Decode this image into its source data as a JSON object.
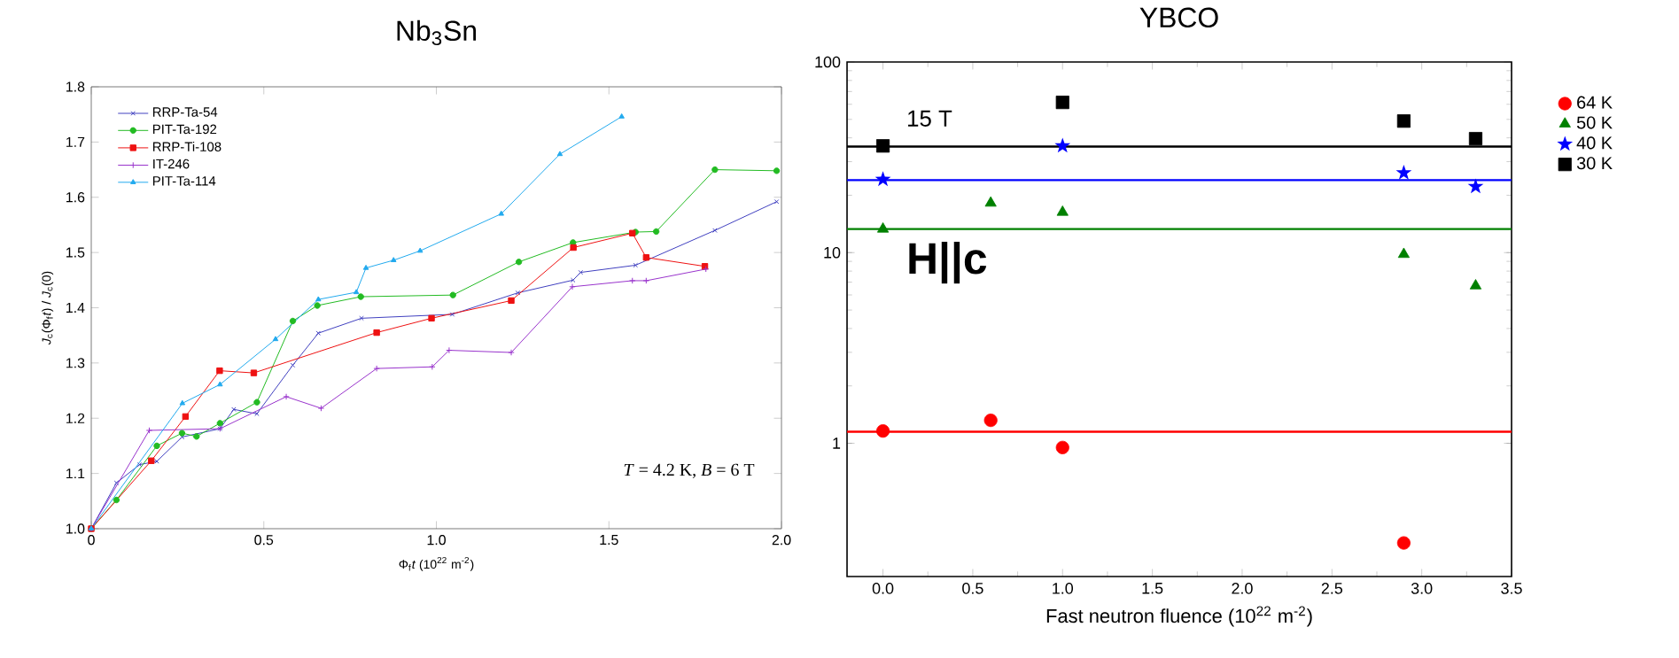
{
  "chart_data": [
    {
      "type": "line",
      "title": "Nb$_{3}$Sn",
      "xlabel": "Φ$_{f}$*t* (10$^{22}$ m$^{-2}$)",
      "ylabel": "*J*$_{c}$(Φ$_{f}$*t*) / *J*$_{c}$(0)",
      "xlim": [
        0,
        2
      ],
      "ylim": [
        1,
        1.8
      ],
      "xticks": [
        0,
        {
          "value": 0.5,
          "label": "0.5"
        },
        {
          "value": 1,
          "label": "1.0"
        },
        {
          "value": 1.5,
          "label": "1.5"
        },
        {
          "value": 2,
          "label": "2.0"
        }
      ],
      "yticks": [
        {
          "value": 1,
          "label": "1.0"
        },
        {
          "value": 1.1,
          "label": "1.1"
        },
        {
          "value": 1.2,
          "label": "1.2"
        },
        {
          "value": 1.3,
          "label": "1.3"
        },
        {
          "value": 1.4,
          "label": "1.4"
        },
        {
          "value": 1.5,
          "label": "1.5"
        },
        {
          "value": 1.6,
          "label": "1.6"
        },
        {
          "value": 1.7,
          "label": "1.7"
        },
        {
          "value": 1.8,
          "label": "1.8"
        }
      ],
      "legend": "top left",
      "annotations": [
        "*T* = 4.2 K,  *B* = 6 T"
      ],
      "series": [
        {
          "name": "RRP-Ta-54",
          "color": "#4040c0",
          "marker": "cross",
          "x": [
            0,
            0.073,
            0.14,
            0.19,
            0.263,
            0.373,
            0.413,
            0.48,
            0.584,
            0.658,
            0.783,
            1.046,
            1.236,
            1.396,
            1.418,
            1.577,
            1.807,
            1.986
          ],
          "values": [
            1.0,
            1.083,
            1.116,
            1.122,
            1.166,
            1.181,
            1.216,
            1.208,
            1.296,
            1.354,
            1.381,
            1.388,
            1.427,
            1.45,
            1.464,
            1.477,
            1.54,
            1.592
          ]
        },
        {
          "name": "PIT-Ta-192",
          "color": "#22bb22",
          "marker": "circle",
          "x": [
            0,
            0.073,
            0.19,
            0.263,
            0.305,
            0.373,
            0.48,
            0.584,
            0.655,
            0.781,
            1.048,
            1.239,
            1.396,
            1.577,
            1.637,
            1.807,
            1.986
          ],
          "values": [
            1.0,
            1.052,
            1.15,
            1.173,
            1.167,
            1.191,
            1.229,
            1.376,
            1.404,
            1.42,
            1.423,
            1.483,
            1.518,
            1.537,
            1.538,
            1.65,
            1.648
          ]
        },
        {
          "name": "RRP-Ti-108",
          "color": "#ee1111",
          "marker": "square",
          "x": [
            0,
            0.174,
            0.273,
            0.372,
            0.471,
            0.827,
            0.986,
            1.217,
            1.397,
            1.568,
            1.608,
            1.778
          ],
          "values": [
            1.0,
            1.123,
            1.203,
            1.286,
            1.282,
            1.355,
            1.381,
            1.413,
            1.509,
            1.535,
            1.491,
            1.475
          ]
        },
        {
          "name": "IT-246",
          "color": "#9933cc",
          "marker": "plus",
          "x": [
            0,
            0.168,
            0.373,
            0.565,
            0.666,
            0.827,
            0.988,
            1.037,
            1.217,
            1.394,
            1.568,
            1.608,
            1.781
          ],
          "values": [
            1.0,
            1.178,
            1.181,
            1.239,
            1.218,
            1.29,
            1.293,
            1.323,
            1.319,
            1.438,
            1.449,
            1.449,
            1.47
          ]
        },
        {
          "name": "PIT-Ta-114",
          "color": "#22aaee",
          "marker": "triangle",
          "x": [
            0,
            0.264,
            0.373,
            0.534,
            0.658,
            0.768,
            0.796,
            0.876,
            0.953,
            1.188,
            1.358,
            1.537
          ],
          "values": [
            1.0,
            1.227,
            1.261,
            1.343,
            1.415,
            1.428,
            1.472,
            1.486,
            1.503,
            1.57,
            1.678,
            1.746
          ]
        }
      ]
    },
    {
      "type": "scatter",
      "title": "YBCO",
      "xlabel": "Fast neutron fluence (10$^{22}$ m$^{-2}$)",
      "xlim": [
        -0.2,
        3.5
      ],
      "ylim": [
        0.2,
        100
      ],
      "log": "y",
      "xticks": [
        {
          "value": 0,
          "label": "0.0"
        },
        {
          "value": 0.5,
          "label": "0.5"
        },
        {
          "value": 1,
          "label": "1.0"
        },
        {
          "value": 1.5,
          "label": "1.5"
        },
        {
          "value": 2,
          "label": "2.0"
        },
        {
          "value": 2.5,
          "label": "2.5"
        },
        {
          "value": 3,
          "label": "3.0"
        },
        {
          "value": 3.5,
          "label": "3.5"
        }
      ],
      "yticks": [
        1,
        10,
        100
      ],
      "legend": "right",
      "annotations": [
        "15 T",
        "**H||c**"
      ],
      "ref_lines": [
        {
          "axis": "y",
          "value": 36,
          "color": "#000000"
        },
        {
          "axis": "y",
          "value": 24,
          "color": "#0000ff"
        },
        {
          "axis": "y",
          "value": 13.3,
          "color": "#008000"
        },
        {
          "axis": "y",
          "value": 1.15,
          "color": "#ff0000"
        }
      ],
      "series": [
        {
          "name": "64 K",
          "color": "#ff0000",
          "marker": "circle",
          "x": [
            0,
            0.6,
            1.0,
            2.9
          ],
          "values": [
            1.16,
            1.32,
            0.95,
            0.3
          ]
        },
        {
          "name": "50 K",
          "color": "#008000",
          "marker": "triangle",
          "x": [
            0,
            0.6,
            1.0,
            2.9,
            3.3
          ],
          "values": [
            13.3,
            18.2,
            16.3,
            9.8,
            6.7
          ]
        },
        {
          "name": "40 K",
          "color": "#0000ff",
          "marker": "star",
          "x": [
            0,
            1.0,
            2.9,
            3.3
          ],
          "values": [
            24.2,
            36.3,
            26.2,
            22.2
          ]
        },
        {
          "name": "30 K",
          "color": "#000000",
          "marker": "square",
          "x": [
            0,
            1.0,
            2.9,
            3.3
          ],
          "values": [
            36.3,
            61.4,
            49,
            39.6
          ]
        }
      ]
    }
  ]
}
